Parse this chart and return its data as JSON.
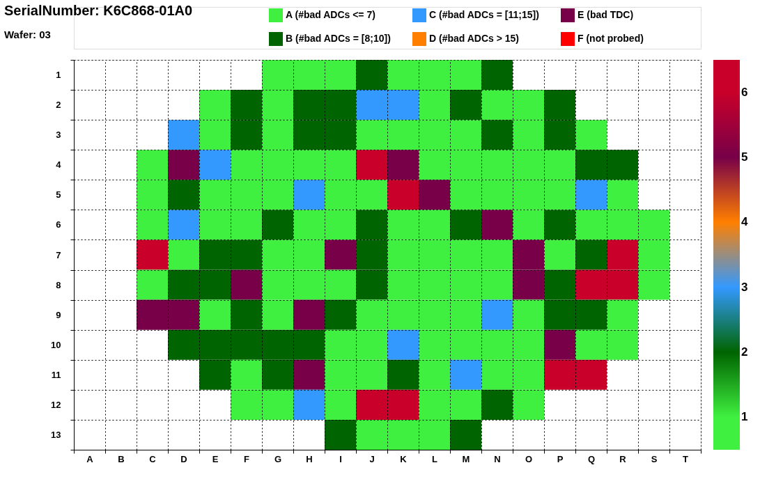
{
  "chart_data": {
    "type": "heatmap",
    "title": "SerialNumber: K6C868-01A0",
    "subtitle": "Wafer: 03",
    "series": [
      {
        "name": "A (#bad ADCs <= 7)",
        "color": "#40f040",
        "values": [
          null,
          null,
          null,
          null,
          null,
          null,
          null,
          null,
          null,
          null,
          null,
          null,
          null,
          null,
          null,
          null,
          null,
          null,
          null,
          null
        ]
      },
      {
        "name": "B (#bad ADCs = [8;10])",
        "color": "#006400",
        "values": [
          null,
          null,
          null,
          null,
          null,
          null,
          null,
          null,
          null,
          null,
          null,
          null,
          null,
          null,
          null,
          null,
          null,
          null,
          null,
          null
        ]
      },
      {
        "name": "C (#bad ADCs = [11;15])",
        "color": "#3399ff",
        "values": [
          null,
          null,
          null,
          null,
          null,
          null,
          null,
          null,
          null,
          null,
          null,
          null,
          null,
          null,
          null,
          null,
          null,
          null,
          null,
          null
        ]
      },
      {
        "name": "D (#bad ADCs > 15)",
        "color": "#ff8000",
        "values": [
          null,
          null,
          null,
          null,
          null,
          null,
          null,
          null,
          null,
          null,
          null,
          null,
          null,
          null,
          null,
          null,
          null,
          null,
          null,
          null
        ]
      },
      {
        "name": "E (bad TDC)",
        "color": "#770048",
        "values": [
          null,
          null,
          null,
          null,
          null,
          null,
          null,
          null,
          null,
          null,
          null,
          null,
          null,
          null,
          null,
          null,
          null,
          null,
          null,
          null
        ]
      },
      {
        "name": "F (not probed)",
        "color": "#ff0000",
        "values": [
          null,
          null,
          null,
          null,
          null,
          null,
          null,
          null,
          null,
          null,
          null,
          null,
          null,
          null,
          null,
          null,
          null,
          null,
          null,
          null
        ]
      }
    ],
    "categories": [
      "A",
      "B",
      "C",
      "D",
      "E",
      "F",
      "G",
      "H",
      "I",
      "J",
      "K",
      "L",
      "M",
      "N",
      "O",
      "P",
      "Q",
      "R",
      "S",
      "T"
    ],
    "y_categories": [
      "1",
      "2",
      "3",
      "4",
      "5",
      "6",
      "7",
      "8",
      "9",
      "10",
      "11",
      "12",
      "13"
    ],
    "cells": [
      [
        null,
        null,
        null,
        null,
        null,
        null,
        1,
        1,
        1,
        2,
        1,
        1,
        1,
        2,
        null,
        null,
        null,
        null,
        null,
        null
      ],
      [
        null,
        null,
        null,
        null,
        1,
        2,
        1,
        2,
        2,
        3,
        3,
        1,
        2,
        1,
        1,
        2,
        null,
        null,
        null,
        null
      ],
      [
        null,
        null,
        null,
        3,
        1,
        2,
        1,
        2,
        2,
        1,
        1,
        1,
        1,
        2,
        1,
        2,
        1,
        null,
        null,
        null
      ],
      [
        null,
        null,
        1,
        5,
        3,
        1,
        1,
        1,
        1,
        6,
        5,
        1,
        1,
        1,
        1,
        1,
        2,
        2,
        null,
        null
      ],
      [
        null,
        null,
        1,
        2,
        1,
        1,
        1,
        3,
        1,
        1,
        6,
        5,
        1,
        1,
        1,
        1,
        3,
        1,
        null,
        null
      ],
      [
        null,
        null,
        1,
        3,
        1,
        1,
        2,
        1,
        1,
        2,
        1,
        1,
        2,
        5,
        1,
        2,
        1,
        1,
        1,
        null
      ],
      [
        null,
        null,
        6,
        1,
        2,
        2,
        1,
        1,
        5,
        2,
        1,
        1,
        1,
        1,
        5,
        1,
        2,
        6,
        1,
        null
      ],
      [
        null,
        null,
        1,
        2,
        2,
        5,
        1,
        1,
        1,
        2,
        1,
        1,
        1,
        1,
        5,
        2,
        6,
        6,
        1,
        null
      ],
      [
        null,
        null,
        5,
        5,
        1,
        2,
        1,
        5,
        2,
        1,
        1,
        1,
        1,
        3,
        1,
        2,
        2,
        1,
        null,
        null
      ],
      [
        null,
        null,
        null,
        2,
        2,
        2,
        2,
        2,
        1,
        1,
        3,
        1,
        1,
        1,
        1,
        5,
        1,
        1,
        null,
        null
      ],
      [
        null,
        null,
        null,
        null,
        2,
        1,
        2,
        5,
        1,
        1,
        2,
        1,
        3,
        1,
        1,
        6,
        6,
        null,
        null,
        null
      ],
      [
        null,
        null,
        null,
        null,
        null,
        1,
        1,
        3,
        1,
        6,
        6,
        1,
        1,
        2,
        1,
        null,
        null,
        null,
        null,
        null
      ],
      [
        null,
        null,
        null,
        null,
        null,
        null,
        null,
        null,
        2,
        1,
        1,
        1,
        2,
        null,
        null,
        null,
        null,
        null,
        null,
        null
      ]
    ],
    "colors": [
      "#40f040",
      "#006400",
      "#3399ff",
      "#ff8000",
      "#770048",
      "#c8002a"
    ],
    "clim": [
      0.5,
      6.5
    ],
    "cticks": [
      1,
      2,
      3,
      4,
      5,
      6
    ],
    "grid": true
  }
}
